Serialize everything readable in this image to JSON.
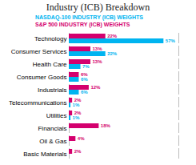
{
  "chart_data": {
    "type": "bar",
    "orientation": "horizontal",
    "title": "Industry (ICB) Breakdown",
    "categories": [
      "Technology",
      "Consumer Services",
      "Health Care",
      "Consumer Goods",
      "Industrials",
      "Telecommunications",
      "Utilities",
      "Financials",
      "Oil & Gas",
      "Basic Materials"
    ],
    "series": [
      {
        "name": "NASDAQ-100 INDUSTRY (ICB) WEIGHTS",
        "color": "#00b4f0",
        "values": [
          57,
          22,
          7,
          6,
          6,
          1,
          1,
          0,
          0,
          0
        ],
        "value_labels": [
          "57%",
          "22%",
          "7%",
          "6%",
          "6%",
          "1%",
          "1%",
          null,
          null,
          null
        ]
      },
      {
        "name": "S&P 500 INDUSTRY (ICB) WEIGHTS",
        "color": "#d4006e",
        "values": [
          22,
          13,
          13,
          6,
          12,
          2,
          2,
          18,
          4,
          2
        ],
        "value_labels": [
          "22%",
          "13%",
          "13%",
          "6%",
          "12%",
          "2%",
          "2%",
          "18%",
          "4%",
          "2%"
        ]
      }
    ],
    "xlim": [
      0,
      66
    ],
    "data_labels": true,
    "tick_labels": "y",
    "grid": false,
    "legend": "top"
  }
}
